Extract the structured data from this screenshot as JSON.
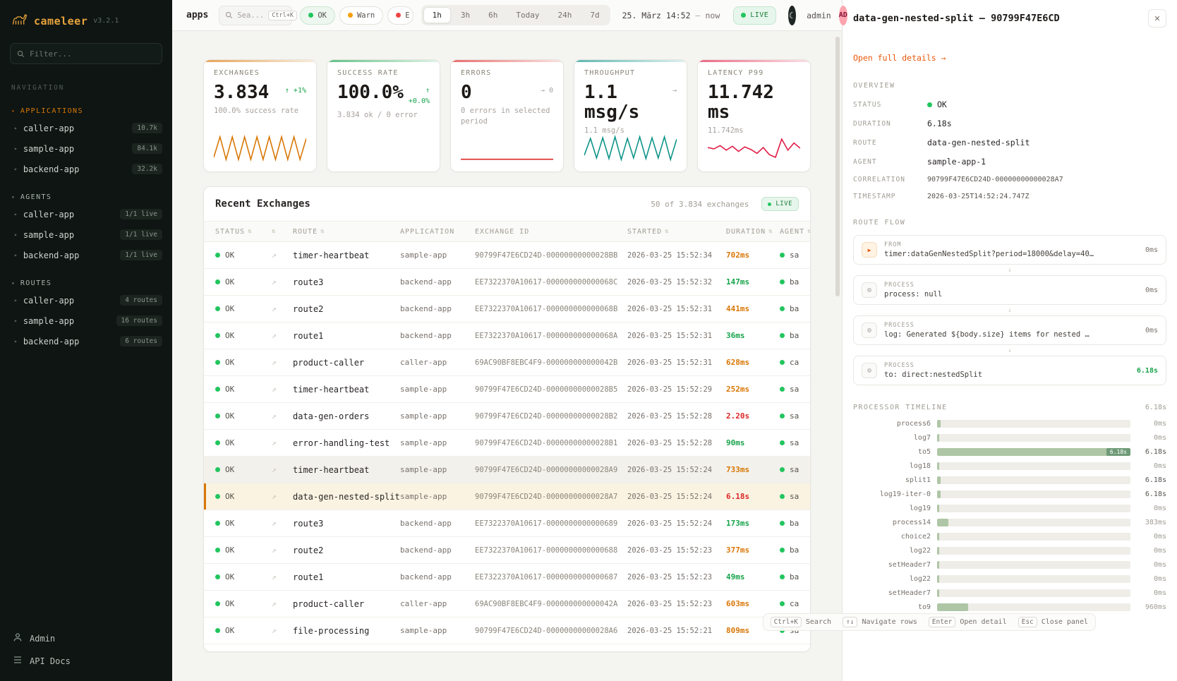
{
  "app": {
    "name": "cameleer",
    "version": "v3.2.1"
  },
  "colors": {
    "ok": "#22c55e",
    "warn": "#f59e0b",
    "error": "#ef4444",
    "accent": "#d97706",
    "duration": {
      "green": "#16a34a",
      "amber": "#d97706",
      "red": "#dc2626"
    }
  },
  "sidebar": {
    "filter_placeholder": "Filter...",
    "nav_label": "NAVIGATION",
    "sections": [
      {
        "title": "APPLICATIONS",
        "accent": true,
        "items": [
          {
            "label": "caller-app",
            "badge": "10.7k"
          },
          {
            "label": "sample-app",
            "badge": "84.1k"
          },
          {
            "label": "backend-app",
            "badge": "32.2k"
          }
        ]
      },
      {
        "title": "AGENTS",
        "accent": false,
        "items": [
          {
            "label": "caller-app",
            "badge": "1/1 live"
          },
          {
            "label": "sample-app",
            "badge": "1/1 live"
          },
          {
            "label": "backend-app",
            "badge": "1/1 live"
          }
        ]
      },
      {
        "title": "ROUTES",
        "accent": false,
        "items": [
          {
            "label": "caller-app",
            "badge": "4 routes"
          },
          {
            "label": "sample-app",
            "badge": "16 routes"
          },
          {
            "label": "backend-app",
            "badge": "6 routes"
          }
        ]
      }
    ],
    "footer": [
      {
        "label": "Admin",
        "icon": "user-icon"
      },
      {
        "label": "API Docs",
        "icon": "docs-icon"
      }
    ]
  },
  "topbar": {
    "context": "apps",
    "search": {
      "placeholder": "Sea...",
      "shortcut": "Ctrl+K"
    },
    "status_filters": [
      {
        "label": "OK",
        "color": "#22c55e",
        "active": true,
        "clipped": false
      },
      {
        "label": "Warn",
        "color": "#f59e0b",
        "active": false,
        "clipped": false
      },
      {
        "label": "E",
        "color": "#ef4444",
        "active": false,
        "clipped": true
      }
    ],
    "ranges": [
      "1h",
      "3h",
      "6h",
      "Today",
      "24h",
      "7d"
    ],
    "active_range": "1h",
    "date": "25. März 14:52",
    "date_sep": "—",
    "date_to": "now",
    "live": "LIVE",
    "user": "admin",
    "avatar": "AD"
  },
  "kpis": [
    {
      "label": "EXCHANGES",
      "value": "3.834",
      "trend": "↑ +1%",
      "trend2": "",
      "trend_color": "#16a34a",
      "sub": "100.0% success rate",
      "accent": "#d97706",
      "spark_color": "#d97706",
      "spark": [
        22,
        85,
        15,
        85,
        15,
        85,
        15,
        85,
        15,
        85,
        15,
        85,
        15,
        85,
        15,
        80
      ]
    },
    {
      "label": "SUCCESS RATE",
      "value": "100.0%",
      "trend": "↑",
      "trend2": "+0.0%",
      "trend_color": "#16a34a",
      "sub": "3.834 ok / 0 error",
      "accent": "#16a34a",
      "spark_color": "",
      "spark": null
    },
    {
      "label": "ERRORS",
      "value": "0",
      "trend": "→ 0",
      "trend2": "",
      "trend_color": "#a8a29e",
      "sub": "0 errors in selected period",
      "accent": "#dc2626",
      "spark_color": "#dc2626",
      "spark": [
        16,
        16
      ]
    },
    {
      "label": "THROUGHPUT",
      "value": "1.1 msg/s",
      "trend": "→",
      "trend2": "",
      "trend_color": "#a8a29e",
      "sub": "1.1 msg/s",
      "accent": "#0d9488",
      "spark_color": "#0d9488",
      "spark": [
        28,
        80,
        20,
        82,
        18,
        85,
        15,
        80,
        20,
        85,
        18,
        82,
        20,
        85,
        15,
        78
      ]
    },
    {
      "label": "LATENCY P99",
      "value": "11.742 ms",
      "trend": "",
      "trend2": "",
      "trend_color": "",
      "sub": "11.742ms",
      "accent": "#e11d48",
      "spark_color": "#e11d48",
      "spark": [
        52,
        48,
        58,
        44,
        56,
        40,
        54,
        46,
        34,
        52,
        30,
        22,
        78,
        44,
        66,
        50
      ]
    }
  ],
  "table": {
    "title": "Recent Exchanges",
    "summary": "50 of 3.834 exchanges",
    "live": "LIVE",
    "columns": [
      {
        "label": "STATUS",
        "sort": true
      },
      {
        "label": "",
        "sort": true
      },
      {
        "label": "ROUTE",
        "sort": true
      },
      {
        "label": "APPLICATION",
        "sort": false
      },
      {
        "label": "EXCHANGE ID",
        "sort": false
      },
      {
        "label": "STARTED",
        "sort": true
      },
      {
        "label": "DURATION",
        "sort": true
      },
      {
        "label": "AGENT",
        "sort": true
      }
    ],
    "rows": [
      {
        "status": "OK",
        "route": "timer-heartbeat",
        "app": "sample-app",
        "id": "90799F47E6CD24D-00000000000028BB",
        "started": "2026-03-25 15:52:34",
        "duration": "702ms",
        "dcolor": "amber",
        "agent": "sample",
        "selected": false,
        "highlight": false
      },
      {
        "status": "OK",
        "route": "route3",
        "app": "backend-app",
        "id": "EE7322370A10617-000000000000068C",
        "started": "2026-03-25 15:52:32",
        "duration": "147ms",
        "dcolor": "green",
        "agent": "backen",
        "selected": false,
        "highlight": false
      },
      {
        "status": "OK",
        "route": "route2",
        "app": "backend-app",
        "id": "EE7322370A10617-000000000000068B",
        "started": "2026-03-25 15:52:31",
        "duration": "441ms",
        "dcolor": "amber",
        "agent": "backen",
        "selected": false,
        "highlight": false
      },
      {
        "status": "OK",
        "route": "route1",
        "app": "backend-app",
        "id": "EE7322370A10617-000000000000068A",
        "started": "2026-03-25 15:52:31",
        "duration": "36ms",
        "dcolor": "green",
        "agent": "backen",
        "selected": false,
        "highlight": false
      },
      {
        "status": "OK",
        "route": "product-caller",
        "app": "caller-app",
        "id": "69AC90BF8EBC4F9-000000000000042B",
        "started": "2026-03-25 15:52:31",
        "duration": "628ms",
        "dcolor": "amber",
        "agent": "caller",
        "selected": false,
        "highlight": false
      },
      {
        "status": "OK",
        "route": "timer-heartbeat",
        "app": "sample-app",
        "id": "90799F47E6CD24D-00000000000028B5",
        "started": "2026-03-25 15:52:29",
        "duration": "252ms",
        "dcolor": "amber",
        "agent": "sample",
        "selected": false,
        "highlight": false
      },
      {
        "status": "OK",
        "route": "data-gen-orders",
        "app": "sample-app",
        "id": "90799F47E6CD24D-00000000000028B2",
        "started": "2026-03-25 15:52:28",
        "duration": "2.20s",
        "dcolor": "red",
        "agent": "sample",
        "selected": false,
        "highlight": false
      },
      {
        "status": "OK",
        "route": "error-handling-test",
        "app": "sample-app",
        "id": "90799F47E6CD24D-00000000000028B1",
        "started": "2026-03-25 15:52:28",
        "duration": "90ms",
        "dcolor": "green",
        "agent": "sample",
        "selected": false,
        "highlight": false
      },
      {
        "status": "OK",
        "route": "timer-heartbeat",
        "app": "sample-app",
        "id": "90799F47E6CD24D-00000000000028A9",
        "started": "2026-03-25 15:52:24",
        "duration": "733ms",
        "dcolor": "amber",
        "agent": "sample",
        "selected": false,
        "highlight": true
      },
      {
        "status": "OK",
        "route": "data-gen-nested-split",
        "app": "sample-app",
        "id": "90799F47E6CD24D-00000000000028A7",
        "started": "2026-03-25 15:52:24",
        "duration": "6.18s",
        "dcolor": "red",
        "agent": "sample",
        "selected": true,
        "highlight": false
      },
      {
        "status": "OK",
        "route": "route3",
        "app": "backend-app",
        "id": "EE7322370A10617-0000000000000689",
        "started": "2026-03-25 15:52:24",
        "duration": "173ms",
        "dcolor": "green",
        "agent": "backen",
        "selected": false,
        "highlight": false
      },
      {
        "status": "OK",
        "route": "route2",
        "app": "backend-app",
        "id": "EE7322370A10617-0000000000000688",
        "started": "2026-03-25 15:52:23",
        "duration": "377ms",
        "dcolor": "amber",
        "agent": "backen",
        "selected": false,
        "highlight": false
      },
      {
        "status": "OK",
        "route": "route1",
        "app": "backend-app",
        "id": "EE7322370A10617-0000000000000687",
        "started": "2026-03-25 15:52:23",
        "duration": "49ms",
        "dcolor": "green",
        "agent": "backen",
        "selected": false,
        "highlight": false
      },
      {
        "status": "OK",
        "route": "product-caller",
        "app": "caller-app",
        "id": "69AC90BF8EBC4F9-000000000000042A",
        "started": "2026-03-25 15:52:23",
        "duration": "603ms",
        "dcolor": "amber",
        "agent": "caller",
        "selected": false,
        "highlight": false
      },
      {
        "status": "OK",
        "route": "file-processing",
        "app": "sample-app",
        "id": "90799F47E6CD24D-00000000000028A6",
        "started": "2026-03-25 15:52:21",
        "duration": "809ms",
        "dcolor": "amber",
        "agent": "sam",
        "selected": false,
        "highlight": false
      }
    ]
  },
  "panel": {
    "title": "data-gen-nested-split — 90799F47E6CD",
    "link": "Open full details →",
    "overview_label": "OVERVIEW",
    "overview": [
      {
        "label": "STATUS",
        "value": "OK",
        "type": "status"
      },
      {
        "label": "DURATION",
        "value": "6.18s",
        "type": "text"
      },
      {
        "label": "ROUTE",
        "value": "data-gen-nested-split",
        "type": "text"
      },
      {
        "label": "AGENT",
        "value": "sample-app-1",
        "type": "text"
      },
      {
        "label": "CORRELATION",
        "value": "90799F47E6CD24D-00000000000028A7",
        "type": "small"
      },
      {
        "label": "TIMESTAMP",
        "value": "2026-03-25T14:52:24.747Z",
        "type": "small"
      }
    ],
    "flow_label": "ROUTE FLOW",
    "flow": [
      {
        "type": "FROM",
        "text": "timer:dataGenNestedSplit?period=18000&delay=40…",
        "duration": "0ms",
        "icon": "play",
        "accent": false
      },
      {
        "type": "PROCESS",
        "text": "process: null",
        "duration": "0ms",
        "icon": "gear",
        "accent": false
      },
      {
        "type": "PROCESS",
        "text": "log: Generated ${body.size} items for nested …",
        "duration": "0ms",
        "icon": "gear",
        "accent": false
      },
      {
        "type": "PROCESS",
        "text": "to: direct:nestedSplit",
        "duration": "6.18s",
        "icon": "gear",
        "accent": true
      }
    ],
    "timeline_label": "PROCESSOR TIMELINE",
    "timeline_total": "6.18s",
    "timeline": [
      {
        "name": "process6",
        "duration": "0ms",
        "pct": 2,
        "strong": false,
        "label_in_bar": false
      },
      {
        "name": "log7",
        "duration": "0ms",
        "pct": 1,
        "strong": false,
        "label_in_bar": false
      },
      {
        "name": "to5",
        "duration": "6.18s",
        "pct": 100,
        "strong": true,
        "label_in_bar": true
      },
      {
        "name": "log18",
        "duration": "0ms",
        "pct": 1,
        "strong": false,
        "label_in_bar": false
      },
      {
        "name": "split1",
        "duration": "6.18s",
        "pct": 2,
        "strong": true,
        "label_in_bar": false
      },
      {
        "name": "log19-iter-0",
        "duration": "6.18s",
        "pct": 2,
        "strong": true,
        "label_in_bar": false
      },
      {
        "name": "log19",
        "duration": "0ms",
        "pct": 1,
        "strong": false,
        "label_in_bar": false
      },
      {
        "name": "process14",
        "duration": "383ms",
        "pct": 6,
        "strong": false,
        "label_in_bar": false
      },
      {
        "name": "choice2",
        "duration": "0ms",
        "pct": 1,
        "strong": false,
        "label_in_bar": false
      },
      {
        "name": "log22",
        "duration": "0ms",
        "pct": 1,
        "strong": false,
        "label_in_bar": false
      },
      {
        "name": "setHeader7",
        "duration": "0ms",
        "pct": 1,
        "strong": false,
        "label_in_bar": false
      },
      {
        "name": "log22",
        "duration": "0ms",
        "pct": 1,
        "strong": false,
        "label_in_bar": false
      },
      {
        "name": "setHeader7",
        "duration": "0ms",
        "pct": 1,
        "strong": false,
        "label_in_bar": false
      },
      {
        "name": "to9",
        "duration": "960ms",
        "pct": 16,
        "strong": false,
        "label_in_bar": false
      }
    ]
  },
  "hints": [
    {
      "key": "Ctrl+K",
      "label": "Search"
    },
    {
      "key": "↑↓",
      "label": "Navigate rows"
    },
    {
      "key": "Enter",
      "label": "Open detail"
    },
    {
      "key": "Esc",
      "label": "Close panel"
    }
  ]
}
